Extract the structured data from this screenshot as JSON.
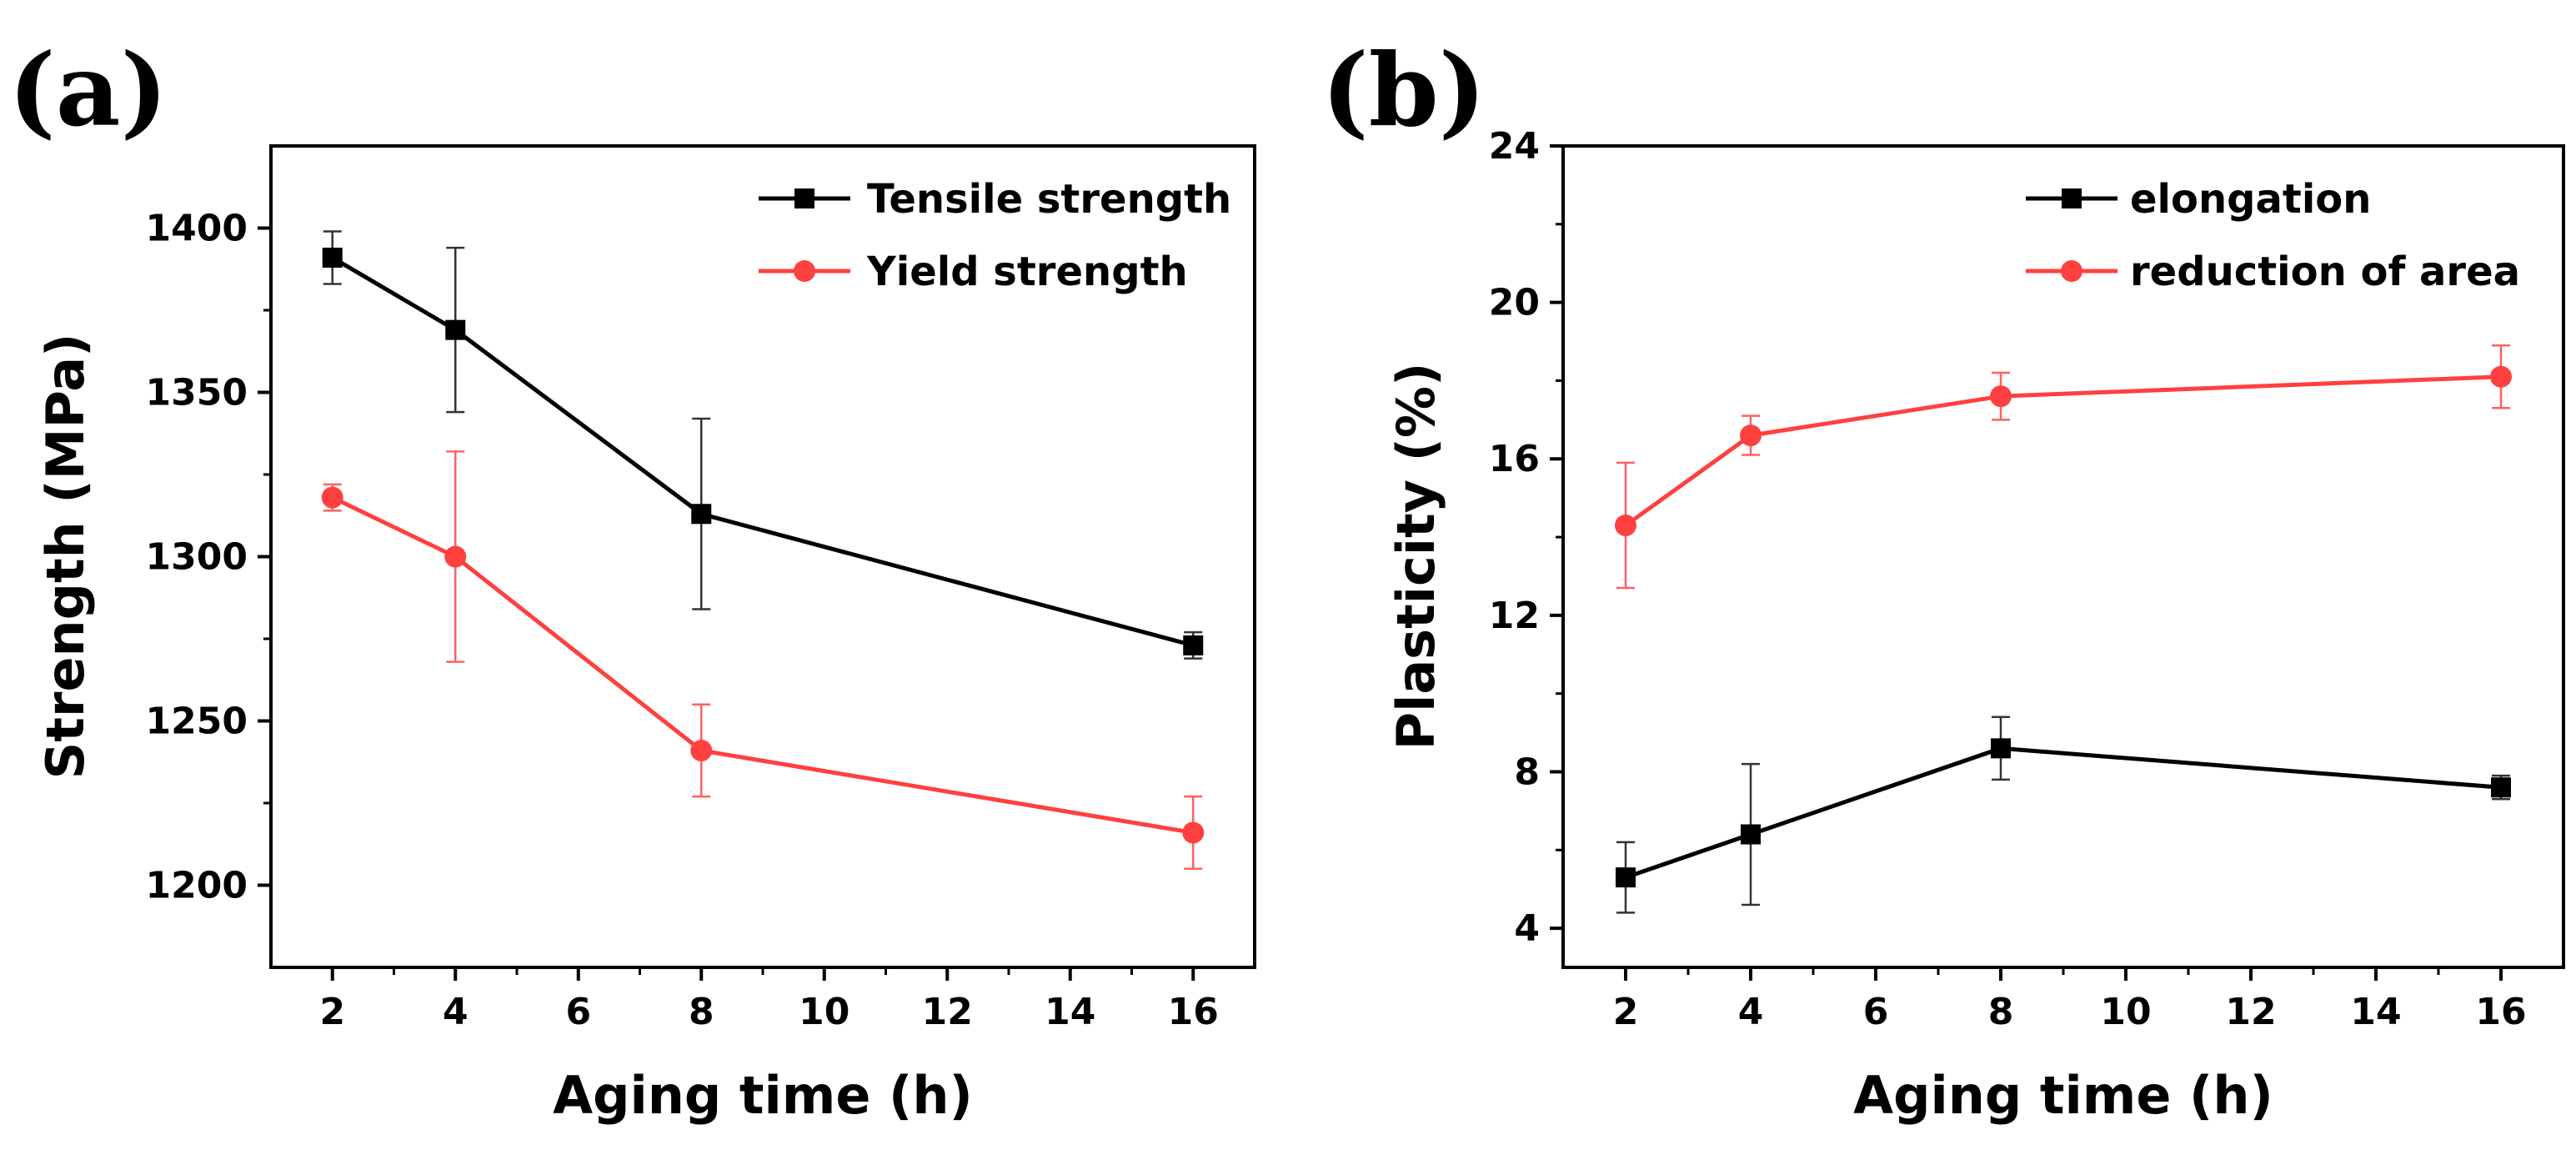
{
  "chart_data": [
    {
      "type": "line",
      "panel_label": "(a)",
      "xlabel": "Aging time (h)",
      "ylabel": "Strength (MPa)",
      "xlim": [
        1,
        17
      ],
      "ylim": [
        1175,
        1425
      ],
      "xticks": [
        2,
        4,
        6,
        8,
        10,
        12,
        14,
        16
      ],
      "yticks": [
        1200,
        1250,
        1300,
        1350,
        1400
      ],
      "legend_position": "top-right",
      "series": [
        {
          "name": "Tensile strength",
          "color": "#000000",
          "marker": "square",
          "x": [
            2,
            4,
            8,
            16
          ],
          "y": [
            1391,
            1369,
            1313,
            1273
          ],
          "err": [
            8,
            25,
            29,
            4
          ]
        },
        {
          "name": "Yield strength",
          "color": "#ff4040",
          "marker": "circle",
          "x": [
            2,
            4,
            8,
            16
          ],
          "y": [
            1318,
            1300,
            1241,
            1216
          ],
          "err": [
            4,
            32,
            14,
            11
          ]
        }
      ]
    },
    {
      "type": "line",
      "panel_label": "(b)",
      "xlabel": "Aging time (h)",
      "ylabel": "Plasticity (%)",
      "xlim": [
        1,
        17
      ],
      "ylim": [
        3,
        24
      ],
      "xticks": [
        2,
        4,
        6,
        8,
        10,
        12,
        14,
        16
      ],
      "yticks": [
        4,
        8,
        12,
        16,
        20,
        24
      ],
      "legend_position": "top-right",
      "series": [
        {
          "name": "elongation",
          "color": "#000000",
          "marker": "square",
          "x": [
            2,
            4,
            8,
            16
          ],
          "y": [
            5.3,
            6.4,
            8.6,
            7.6
          ],
          "err": [
            0.9,
            1.8,
            0.8,
            0.3
          ]
        },
        {
          "name": "reduction of area",
          "color": "#ff4040",
          "marker": "circle",
          "x": [
            2,
            4,
            8,
            16
          ],
          "y": [
            14.3,
            16.6,
            17.6,
            18.1
          ],
          "err": [
            1.6,
            0.5,
            0.6,
            0.8
          ]
        }
      ]
    }
  ]
}
